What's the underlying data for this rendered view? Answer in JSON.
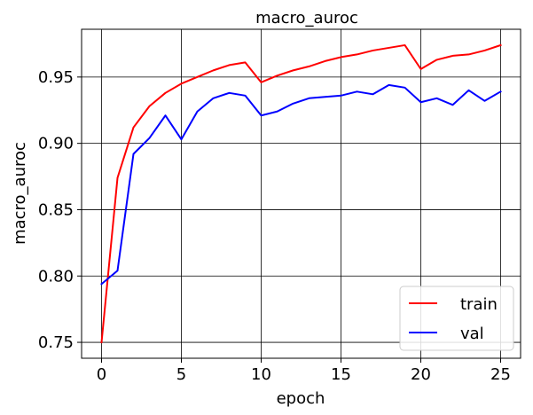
{
  "chart_data": {
    "type": "line",
    "title": "macro_auroc",
    "xlabel": "epoch",
    "ylabel": "macro_auroc",
    "xlim": [
      -1.25,
      26.25
    ],
    "ylim": [
      0.738,
      0.986
    ],
    "xticks": [
      0,
      5,
      10,
      15,
      20,
      25
    ],
    "yticks": [
      0.75,
      0.8,
      0.85,
      0.9,
      0.95
    ],
    "xtick_labels": [
      "0",
      "5",
      "10",
      "15",
      "20",
      "25"
    ],
    "ytick_labels": [
      "0.75",
      "0.80",
      "0.85",
      "0.90",
      "0.95"
    ],
    "grid": true,
    "legend_position": "bottom-right",
    "x": [
      0,
      1,
      2,
      3,
      4,
      5,
      6,
      7,
      8,
      9,
      10,
      11,
      12,
      13,
      14,
      15,
      16,
      17,
      18,
      19,
      20,
      21,
      22,
      23,
      24,
      25
    ],
    "series": [
      {
        "name": "train",
        "color": "#ff0000",
        "values": [
          0.75,
          0.874,
          0.912,
          0.928,
          0.938,
          0.945,
          0.95,
          0.955,
          0.959,
          0.961,
          0.946,
          0.951,
          0.955,
          0.958,
          0.962,
          0.965,
          0.967,
          0.97,
          0.972,
          0.974,
          0.956,
          0.963,
          0.966,
          0.967,
          0.97,
          0.974
        ]
      },
      {
        "name": "val",
        "color": "#0000ff",
        "values": [
          0.794,
          0.804,
          0.892,
          0.904,
          0.921,
          0.903,
          0.924,
          0.934,
          0.938,
          0.936,
          0.921,
          0.924,
          0.93,
          0.934,
          0.935,
          0.936,
          0.939,
          0.937,
          0.944,
          0.942,
          0.931,
          0.934,
          0.929,
          0.94,
          0.932,
          0.939
        ]
      }
    ]
  }
}
